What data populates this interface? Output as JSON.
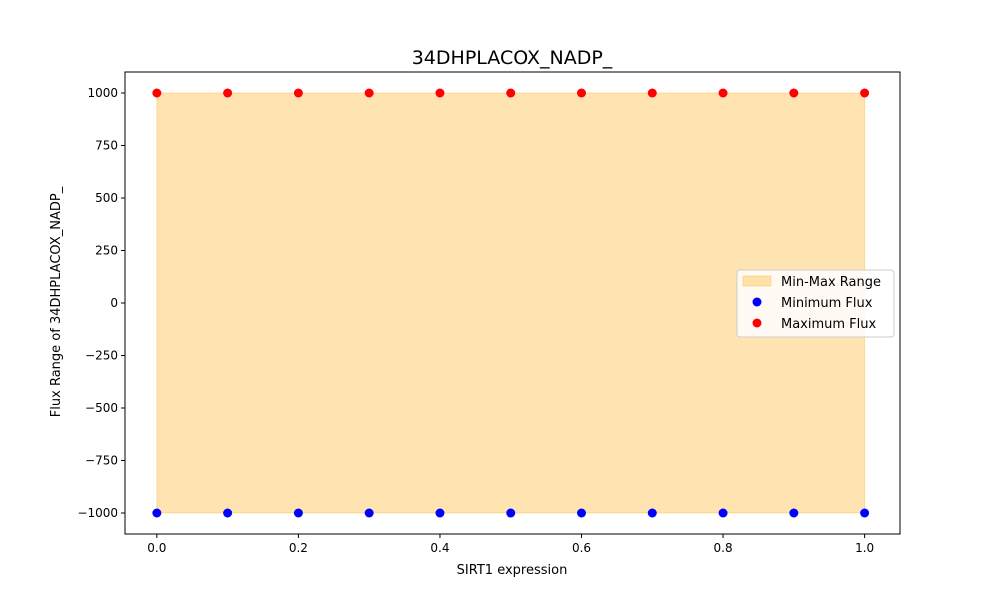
{
  "chart_data": {
    "type": "scatter",
    "title": "34DHPLACOX_NADP_",
    "xlabel": "SIRT1 expression",
    "ylabel": "Flux Range of 34DHPLACOX_NADP_",
    "xlim": [
      -0.045,
      1.05
    ],
    "ylim": [
      -1100,
      1100
    ],
    "x_ticks": [
      0.0,
      0.2,
      0.4,
      0.6,
      0.8,
      1.0
    ],
    "x_tick_labels": [
      "0.0",
      "0.2",
      "0.4",
      "0.6",
      "0.8",
      "1.0"
    ],
    "y_ticks": [
      -1000,
      -750,
      -500,
      -250,
      0,
      250,
      500,
      750,
      1000
    ],
    "y_tick_labels": [
      "−1000",
      "−750",
      "−500",
      "−250",
      "0",
      "250",
      "500",
      "750",
      "1000"
    ],
    "x": [
      0.0,
      0.1,
      0.2,
      0.3,
      0.4,
      0.5,
      0.6,
      0.7,
      0.8,
      0.9,
      1.0
    ],
    "series": [
      {
        "name": "Minimum Flux",
        "kind": "scatter",
        "color": "#0000ff",
        "values": [
          -1000,
          -1000,
          -1000,
          -1000,
          -1000,
          -1000,
          -1000,
          -1000,
          -1000,
          -1000,
          -1000
        ]
      },
      {
        "name": "Maximum Flux",
        "kind": "scatter",
        "color": "#ff0000",
        "values": [
          1000,
          1000,
          1000,
          1000,
          1000,
          1000,
          1000,
          1000,
          1000,
          1000,
          1000
        ]
      }
    ],
    "range_band": {
      "name": "Min-Max Range",
      "color": "#ffa500",
      "opacity": 0.3
    },
    "legend": {
      "placement": "center-right",
      "entries": [
        "Min-Max Range",
        "Minimum Flux",
        "Maximum Flux"
      ]
    },
    "grid": false
  }
}
